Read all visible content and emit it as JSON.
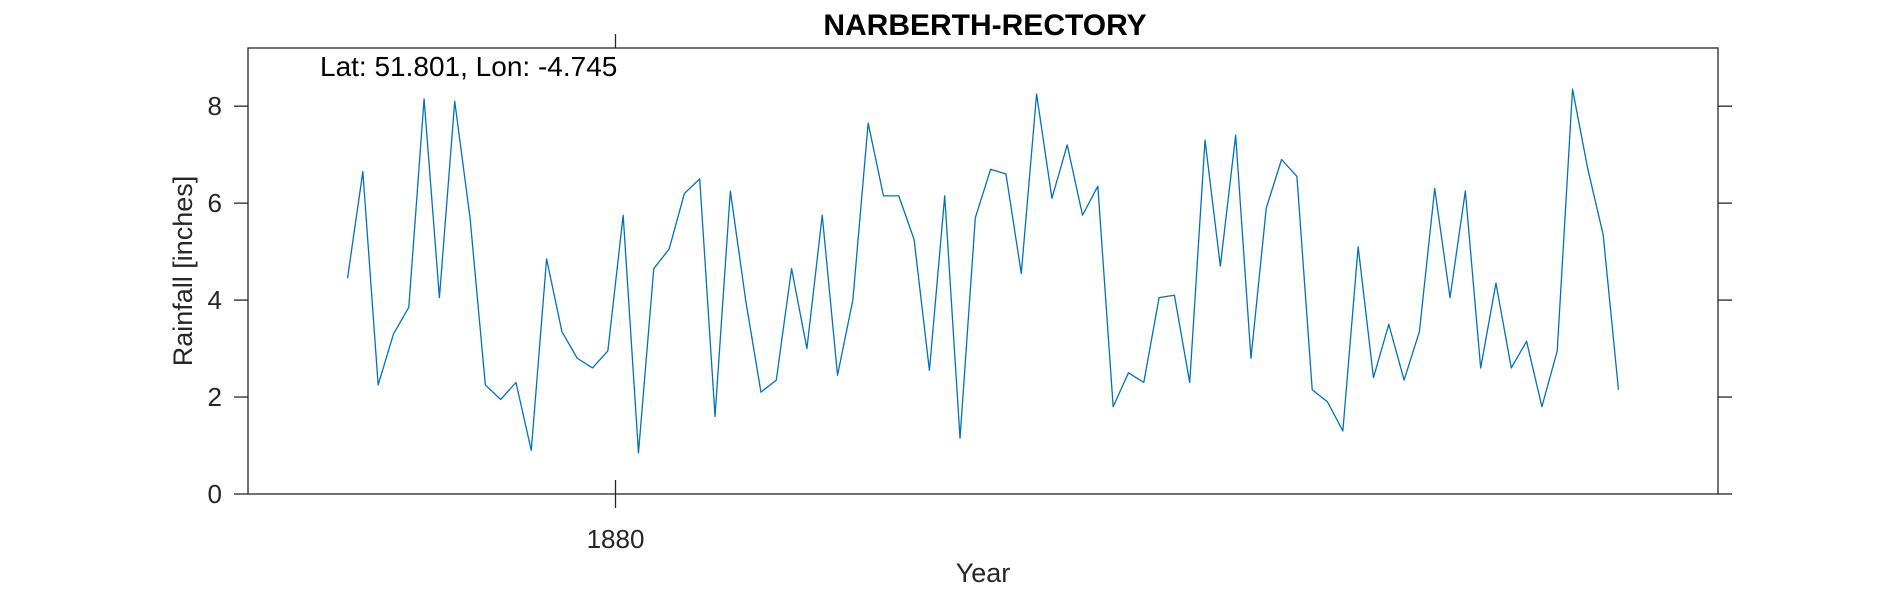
{
  "chart_data": {
    "type": "line",
    "title": "NARBERTH-RECTORY",
    "annotation": "Lat: 51.801, Lon: -4.745",
    "xlabel": "Year",
    "ylabel": "Rainfall [inches]",
    "xlim": [
      1868,
      1916
    ],
    "ylim": [
      0,
      9.2
    ],
    "xticks": [
      1880
    ],
    "xtick_labels": [
      "1880"
    ],
    "yticks": [
      0,
      2,
      4,
      6,
      8
    ],
    "ytick_labels": [
      "0",
      "2",
      "4",
      "6",
      "8"
    ],
    "grid": false,
    "line_color": "#0072BD",
    "series": [
      {
        "x_start": 1871.25,
        "x_step": 0.5,
        "values": [
          4.45,
          6.65,
          2.25,
          3.3,
          3.85,
          8.15,
          4.05,
          8.1,
          5.7,
          2.25,
          1.95,
          2.3,
          0.9,
          4.85,
          3.35,
          2.8,
          2.6,
          2.95,
          5.75,
          0.85,
          4.65,
          5.05,
          6.2,
          6.5,
          1.6,
          6.25,
          4.0,
          2.1,
          2.35,
          4.65,
          3.0,
          5.75,
          2.45,
          4.0,
          7.65,
          6.15,
          6.15,
          5.25,
          2.55,
          6.15,
          1.15,
          5.7,
          6.7,
          6.6,
          4.55,
          8.25,
          6.1,
          7.2,
          5.75,
          6.35,
          1.8,
          2.5,
          2.3,
          4.05,
          4.1,
          2.3,
          7.3,
          4.7,
          7.4,
          2.8,
          5.9,
          6.9,
          6.55,
          2.15,
          1.9,
          1.3,
          5.1,
          2.4,
          3.5,
          2.35,
          3.35,
          6.3,
          4.05,
          6.25,
          2.6,
          4.35,
          2.6,
          3.15,
          1.8,
          2.95,
          8.35,
          6.7,
          5.35,
          2.15
        ]
      }
    ]
  }
}
